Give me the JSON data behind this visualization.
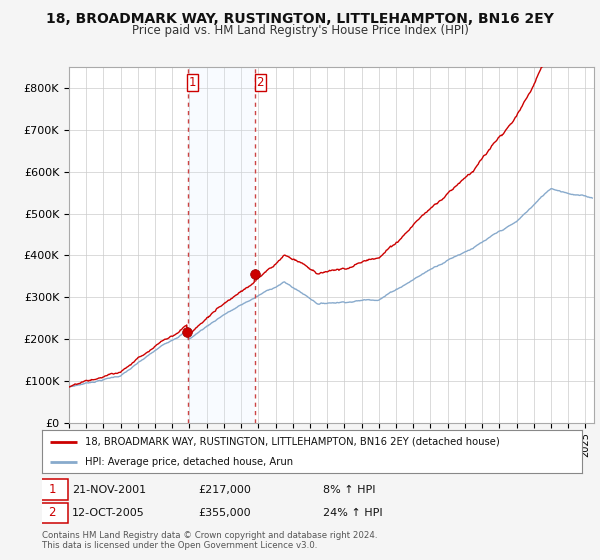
{
  "title": "18, BROADMARK WAY, RUSTINGTON, LITTLEHAMPTON, BN16 2EY",
  "subtitle": "Price paid vs. HM Land Registry's House Price Index (HPI)",
  "ylabel_ticks": [
    "£0",
    "£100K",
    "£200K",
    "£300K",
    "£400K",
    "£500K",
    "£600K",
    "£700K",
    "£800K"
  ],
  "ytick_values": [
    0,
    100000,
    200000,
    300000,
    400000,
    500000,
    600000,
    700000,
    800000
  ],
  "ylim": [
    0,
    850000
  ],
  "xlim_start": 1995.0,
  "xlim_end": 2025.5,
  "line1_color": "#cc0000",
  "line2_color": "#88aacc",
  "marker_color": "#cc0000",
  "shade_color": "#ddeeff",
  "transaction1_x": 2001.9,
  "transaction1_y": 217000,
  "transaction2_x": 2005.8,
  "transaction2_y": 355000,
  "transaction1_label": "1",
  "transaction2_label": "2",
  "annotation1_date": "21-NOV-2001",
  "annotation1_price": "£217,000",
  "annotation1_hpi": "8% ↑ HPI",
  "annotation2_date": "12-OCT-2005",
  "annotation2_price": "£355,000",
  "annotation2_hpi": "24% ↑ HPI",
  "legend1_label": "18, BROADMARK WAY, RUSTINGTON, LITTLEHAMPTON, BN16 2EY (detached house)",
  "legend2_label": "HPI: Average price, detached house, Arun",
  "footer_text1": "Contains HM Land Registry data © Crown copyright and database right 2024.",
  "footer_text2": "This data is licensed under the Open Government Licence v3.0.",
  "background_color": "#f5f5f5",
  "plot_bg_color": "#ffffff",
  "grid_color": "#cccccc",
  "title_fontsize": 10,
  "subtitle_fontsize": 8.5
}
